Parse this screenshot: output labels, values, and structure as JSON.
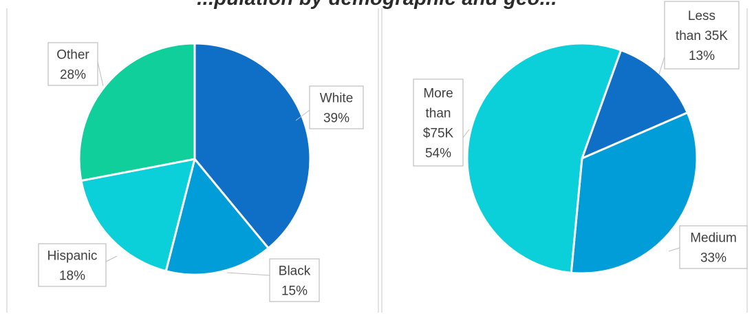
{
  "title": "...pulation by demographic and geo...",
  "colors": {
    "white_slice": "#0f6fc6",
    "black_slice": "#009dd9",
    "hispanic_slice": "#0bd0d9",
    "other_slice": "#10cf9b",
    "frame": "#c8c8c8",
    "label_border": "#bdbdbd",
    "text": "#404040"
  },
  "chart_data": [
    {
      "type": "pie",
      "title": "",
      "categories": [
        "White",
        "Black",
        "Hispanic",
        "Other"
      ],
      "values": [
        39,
        15,
        18,
        28
      ],
      "labels": [
        "White\n39%",
        "Black\n15%",
        "Hispanic\n18%",
        "Other\n28%"
      ],
      "colors": [
        "#0f6fc6",
        "#009dd9",
        "#0bd0d9",
        "#10cf9b"
      ]
    },
    {
      "type": "pie",
      "title": "",
      "categories": [
        "Less than 35K",
        "Medium",
        "More than $75K"
      ],
      "values": [
        13,
        33,
        54
      ],
      "labels": [
        "Less\nthan 35K\n13%",
        "Medium\n33%",
        "More\nthan\n$75K\n54%"
      ],
      "colors": [
        "#0f6fc6",
        "#009dd9",
        "#0bd0d9"
      ]
    }
  ]
}
